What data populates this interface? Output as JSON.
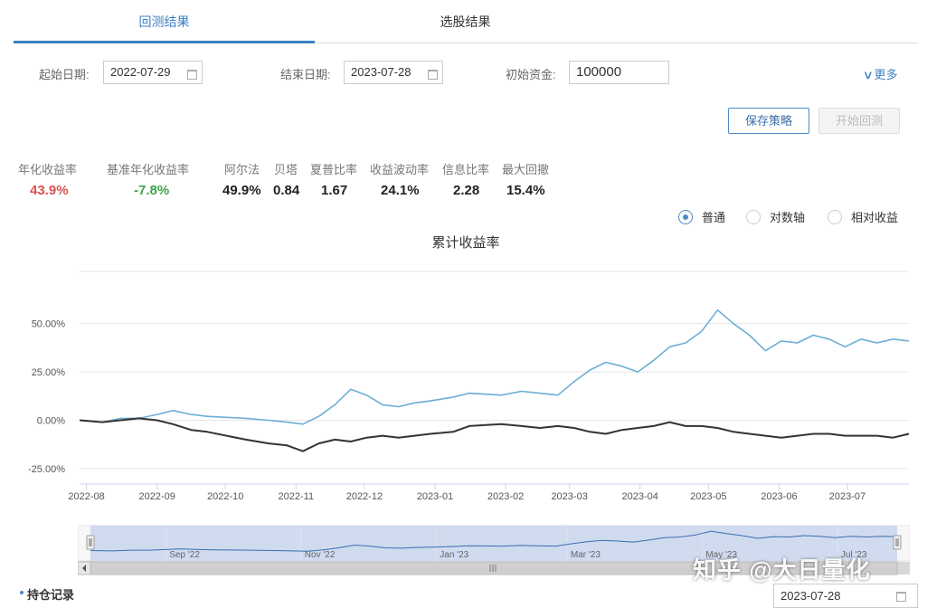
{
  "tabs": [
    {
      "label": "回测结果"
    },
    {
      "label": "选股结果"
    }
  ],
  "form": {
    "start_label": "起始日期:",
    "start_value": "2022-07-29",
    "end_label": "结束日期:",
    "end_value": "2023-07-28",
    "capital_label": "初始资金:",
    "capital_value": "100000",
    "more_label": "更多"
  },
  "buttons": {
    "save": "保存策略",
    "start": "开始回测"
  },
  "metrics": [
    {
      "label": "年化收益率",
      "value": "43.9%"
    },
    {
      "label": "基准年化收益率",
      "value": "-7.8%"
    },
    {
      "label": "阿尔法",
      "value": "49.9%"
    },
    {
      "label": "贝塔",
      "value": "0.84"
    },
    {
      "label": "夏普比率",
      "value": "1.67"
    },
    {
      "label": "收益波动率",
      "value": "24.1%"
    },
    {
      "label": "信息比率",
      "value": "2.28"
    },
    {
      "label": "最大回撤",
      "value": "15.4%"
    }
  ],
  "radios": [
    {
      "label": "普通",
      "selected": true
    },
    {
      "label": "对数轴",
      "selected": false
    },
    {
      "label": "相对收益",
      "selected": false
    }
  ],
  "colors": {
    "strategy": "#6baed6",
    "benchmark": "#333333",
    "accent": "#3b7fc4",
    "navigator_fill": "#c9d6ee"
  },
  "chart_data": {
    "type": "line",
    "title": "累计收益率",
    "y_ticks": [
      "50.00%",
      "25.00%",
      "0.00%",
      "-25.00%"
    ],
    "y_tick_values": [
      50,
      25,
      0,
      -25
    ],
    "ylim": [
      -33,
      77
    ],
    "x_ticks": [
      "2022-08",
      "2022-09",
      "2022-10",
      "2022-11",
      "2022-12",
      "2023-01",
      "2023-02",
      "2023-03",
      "2023-04",
      "2023-05",
      "2023-06",
      "2023-07"
    ],
    "x_tick_dates": [
      "2022-08-01",
      "2022-09-01",
      "2022-10-01",
      "2022-11-01",
      "2022-12-01",
      "2023-01-01",
      "2023-02-01",
      "2023-03-01",
      "2023-04-01",
      "2023-05-01",
      "2023-06-01",
      "2023-07-01"
    ],
    "xlim": [
      "2022-07-29",
      "2023-07-28"
    ],
    "grid": true,
    "series": [
      {
        "key": "strategy",
        "x": [
          "2022-07-29",
          "2022-08-08",
          "2022-08-16",
          "2022-08-24",
          "2022-09-01",
          "2022-09-08",
          "2022-09-16",
          "2022-09-23",
          "2022-10-10",
          "2022-10-20",
          "2022-10-28",
          "2022-11-04",
          "2022-11-11",
          "2022-11-18",
          "2022-11-25",
          "2022-12-02",
          "2022-12-09",
          "2022-12-16",
          "2022-12-23",
          "2022-12-30",
          "2023-01-09",
          "2023-01-16",
          "2023-01-30",
          "2023-02-08",
          "2023-02-16",
          "2023-02-24",
          "2023-03-03",
          "2023-03-10",
          "2023-03-17",
          "2023-03-24",
          "2023-03-31",
          "2023-04-07",
          "2023-04-14",
          "2023-04-21",
          "2023-04-28",
          "2023-05-05",
          "2023-05-12",
          "2023-05-19",
          "2023-05-26",
          "2023-06-02",
          "2023-06-09",
          "2023-06-16",
          "2023-06-23",
          "2023-06-30",
          "2023-07-07",
          "2023-07-14",
          "2023-07-21",
          "2023-07-28"
        ],
        "y": [
          0,
          -1,
          1,
          1,
          3,
          5,
          3,
          2,
          1,
          0,
          -1,
          -2,
          2,
          8,
          16,
          13,
          8,
          7,
          9,
          10,
          12,
          14,
          13,
          15,
          14,
          13,
          20,
          26,
          30,
          28,
          25,
          31,
          38,
          40,
          46,
          57,
          50,
          44,
          36,
          41,
          40,
          44,
          42,
          38,
          42,
          40,
          42,
          41
        ]
      },
      {
        "key": "benchmark",
        "x": [
          "2022-07-29",
          "2022-08-08",
          "2022-08-16",
          "2022-08-24",
          "2022-09-01",
          "2022-09-08",
          "2022-09-16",
          "2022-09-23",
          "2022-10-10",
          "2022-10-20",
          "2022-10-28",
          "2022-11-04",
          "2022-11-11",
          "2022-11-18",
          "2022-11-25",
          "2022-12-02",
          "2022-12-09",
          "2022-12-16",
          "2022-12-23",
          "2022-12-30",
          "2023-01-09",
          "2023-01-16",
          "2023-01-30",
          "2023-02-08",
          "2023-02-16",
          "2023-02-24",
          "2023-03-03",
          "2023-03-10",
          "2023-03-17",
          "2023-03-24",
          "2023-03-31",
          "2023-04-07",
          "2023-04-14",
          "2023-04-21",
          "2023-04-28",
          "2023-05-05",
          "2023-05-12",
          "2023-05-19",
          "2023-05-26",
          "2023-06-02",
          "2023-06-09",
          "2023-06-16",
          "2023-06-23",
          "2023-06-30",
          "2023-07-07",
          "2023-07-14",
          "2023-07-21",
          "2023-07-28"
        ],
        "y": [
          0,
          -1,
          0,
          1,
          0,
          -2,
          -5,
          -6,
          -10,
          -12,
          -13,
          -16,
          -12,
          -10,
          -11,
          -9,
          -8,
          -9,
          -8,
          -7,
          -6,
          -3,
          -2,
          -3,
          -4,
          -3,
          -4,
          -6,
          -7,
          -5,
          -4,
          -3,
          -1,
          -3,
          -3,
          -4,
          -6,
          -7,
          -8,
          -9,
          -8,
          -7,
          -7,
          -8,
          -8,
          -8,
          -9,
          -7
        ]
      }
    ],
    "navigator": {
      "ticks": [
        "Sep '22",
        "Nov '22",
        "Jan '23",
        "Mar '23",
        "May '23",
        "Jul '23"
      ],
      "tick_dates": [
        "2022-09-01",
        "2022-11-01",
        "2023-01-01",
        "2023-03-01",
        "2023-05-01",
        "2023-07-01"
      ]
    }
  },
  "holdings": {
    "label": "持仓记录",
    "date_value": "2023-07-28"
  },
  "watermark": "知乎 @大日量化"
}
